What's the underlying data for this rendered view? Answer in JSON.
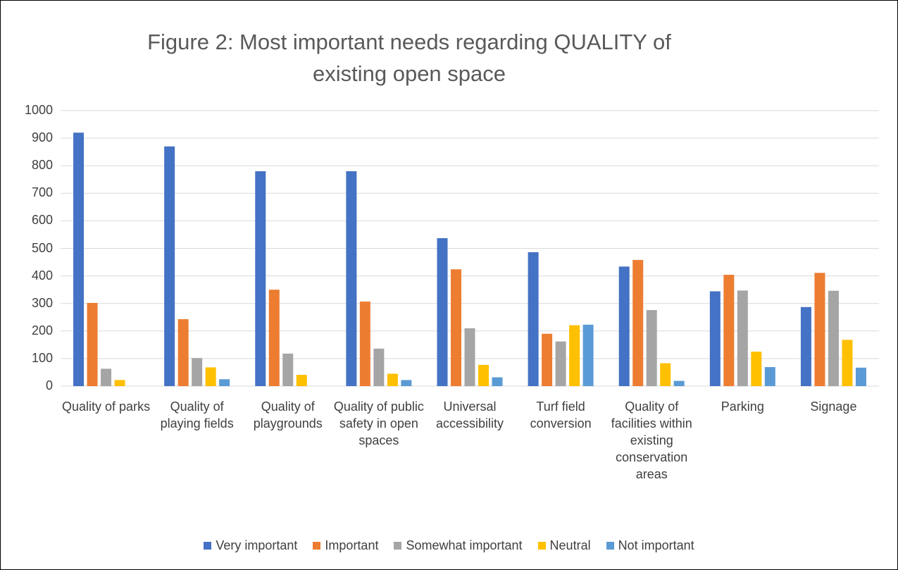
{
  "chart_data": {
    "type": "bar",
    "title": "Figure 2: Most important needs regarding QUALITY of existing open space",
    "categories": [
      "Quality of parks",
      "Quality of playing fields",
      "Quality of playgrounds",
      "Quality of public safety in open spaces",
      "Universal accessibility",
      "Turf field conversion",
      "Quality of facilities within existing conservation areas",
      "Parking",
      "Signage"
    ],
    "series": [
      {
        "name": "Very important",
        "color": "#4472c4",
        "values": [
          920,
          870,
          780,
          780,
          537,
          486,
          434,
          344,
          287
        ]
      },
      {
        "name": "Important",
        "color": "#ed7d31",
        "values": [
          302,
          243,
          350,
          307,
          424,
          190,
          458,
          404,
          411
        ]
      },
      {
        "name": "Somewhat important",
        "color": "#a5a5a5",
        "values": [
          63,
          102,
          118,
          136,
          210,
          162,
          276,
          347,
          346
        ]
      },
      {
        "name": "Neutral",
        "color": "#ffc000",
        "values": [
          22,
          68,
          41,
          45,
          77,
          221,
          83,
          125,
          168
        ]
      },
      {
        "name": "Not important",
        "color": "#5b9bd5",
        "values": [
          0,
          25,
          0,
          22,
          32,
          223,
          19,
          69,
          67
        ]
      }
    ],
    "ylim": [
      0,
      1000
    ],
    "yticks": [
      0,
      100,
      200,
      300,
      400,
      500,
      600,
      700,
      800,
      900,
      1000
    ],
    "grid": true,
    "legend": "bottom"
  }
}
